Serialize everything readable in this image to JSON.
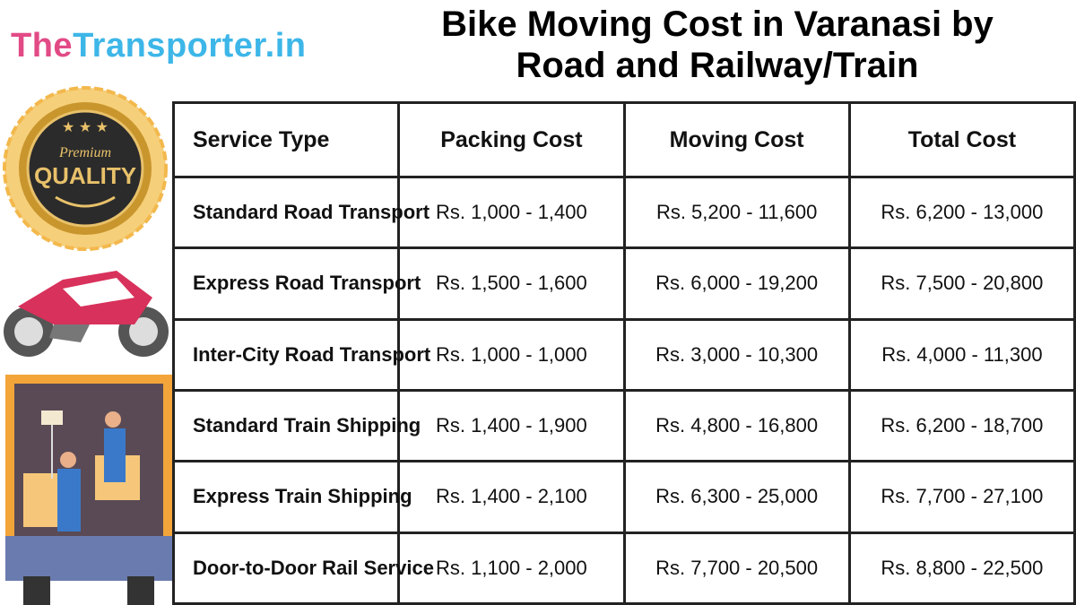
{
  "brand": {
    "part1": "The",
    "part2": "Transporter.in",
    "color1": "#e24a86",
    "color2": "#3db6e8"
  },
  "title": {
    "line1": "Bike Moving Cost in Varanasi by",
    "line2": "Road and Railway/Train"
  },
  "badge": {
    "top": "Premium",
    "main": "QUALITY"
  },
  "table": {
    "headers": [
      "Service Type",
      "Packing Cost",
      "Moving Cost",
      "Total Cost"
    ],
    "rows": [
      [
        "Standard Road Transport",
        "Rs. 1,000 - 1,400",
        "Rs. 5,200 - 11,600",
        "Rs. 6,200 - 13,000"
      ],
      [
        "Express Road Transport",
        "Rs. 1,500 - 1,600",
        "Rs. 6,000 - 19,200",
        "Rs. 7,500 - 20,800"
      ],
      [
        "Inter-City Road Transport",
        "Rs. 1,000 - 1,000",
        "Rs. 3,000 - 10,300",
        "Rs. 4,000 - 11,300"
      ],
      [
        "Standard Train Shipping",
        "Rs. 1,400 - 1,900",
        "Rs. 4,800 - 16,800",
        "Rs. 6,200 - 18,700"
      ],
      [
        "Express Train Shipping",
        "Rs. 1,400 - 2,100",
        "Rs. 6,300 - 25,000",
        "Rs. 7,700 - 27,100"
      ],
      [
        "Door-to-Door Rail Service",
        "Rs. 1,100 - 2,000",
        "Rs. 7,700 - 20,500",
        "Rs. 8,800 - 22,500"
      ]
    ]
  }
}
